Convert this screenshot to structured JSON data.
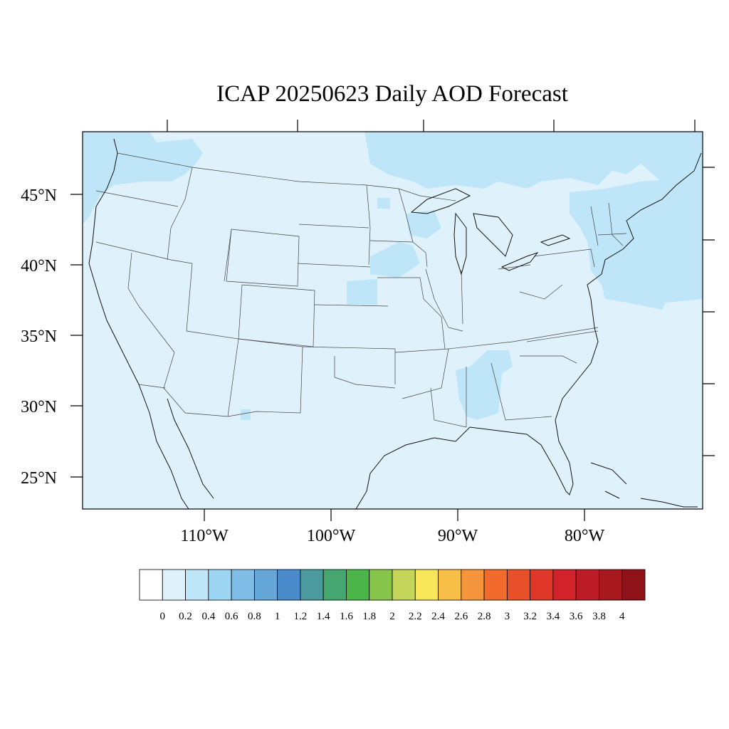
{
  "map": {
    "title": "ICAP 20250623 Daily AOD Forecast",
    "background_color": "#dff2fb",
    "lat_ticks": [
      "45°N",
      "40°N",
      "35°N",
      "30°N",
      "25°N"
    ],
    "lon_ticks": [
      "110°W",
      "100°W",
      "90°W",
      "80°W"
    ]
  },
  "colorbar": {
    "labels": [
      "0",
      "0.2",
      "0.4",
      "0.6",
      "0.8",
      "1",
      "1.2",
      "1.4",
      "1.6",
      "1.8",
      "2",
      "2.2",
      "2.4",
      "2.6",
      "2.8",
      "3",
      "3.2",
      "3.4",
      "3.6",
      "3.8",
      "4"
    ],
    "colors": [
      "#ffffff",
      "#dff2fb",
      "#bfe6f8",
      "#9dd6f3",
      "#80bde6",
      "#66a7da",
      "#4a8ccb",
      "#4a9a9e",
      "#46a66f",
      "#4cb54a",
      "#86c54a",
      "#c4d65a",
      "#f7e65a",
      "#f8bf48",
      "#f5963d",
      "#f26b2c",
      "#e8502a",
      "#df3828",
      "#d2232a",
      "#bc1c26",
      "#a8181f",
      "#8f1219"
    ]
  }
}
